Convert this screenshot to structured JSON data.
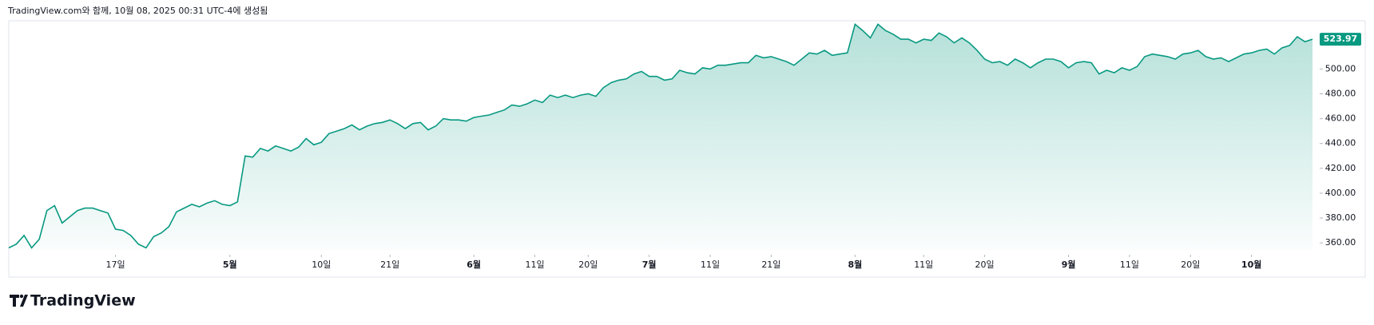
{
  "header": "TradingView.com와 함께, 10월 08, 2025 00:31 UTC-4에 생성됨",
  "brand": "TradingView",
  "chart_data": {
    "type": "area",
    "color": "#089981",
    "values": [
      356,
      359,
      366,
      356,
      363,
      386,
      390,
      376,
      381,
      386,
      388,
      388,
      386,
      384,
      371,
      370,
      366,
      359,
      356,
      365,
      368,
      373,
      385,
      388,
      391,
      389,
      392,
      394,
      391,
      390,
      393,
      430,
      429,
      436,
      434,
      438,
      436,
      434,
      437,
      444,
      439,
      441,
      448,
      450,
      452,
      455,
      451,
      454,
      456,
      457,
      459,
      456,
      452,
      456,
      457,
      451,
      454,
      460,
      459,
      459,
      458,
      461,
      462,
      463,
      465,
      467,
      471,
      470,
      472,
      475,
      473,
      479,
      477,
      479,
      477,
      479,
      480,
      478,
      485,
      489,
      491,
      492,
      496,
      498,
      494,
      494,
      491,
      492,
      499,
      497,
      496,
      501,
      500,
      503,
      503,
      504,
      505,
      505,
      511,
      509,
      510,
      508,
      506,
      503,
      508,
      513,
      512,
      515,
      511,
      512,
      513,
      536,
      531,
      525,
      536,
      531,
      528,
      524,
      524,
      521,
      524,
      523,
      529,
      526,
      521,
      525,
      521,
      515,
      508,
      505,
      506,
      503,
      508,
      505,
      501,
      505,
      508,
      508,
      506,
      501,
      505,
      506,
      505,
      496,
      499,
      497,
      501,
      499,
      502,
      510,
      512,
      511,
      510,
      508,
      512,
      513,
      515,
      510,
      508,
      509,
      506,
      509,
      512,
      513,
      515,
      516,
      512,
      517,
      519,
      526,
      522,
      523.97
    ],
    "ylim": [
      354.3,
      538.2
    ],
    "yticks": [
      {
        "value": 360,
        "label": "360.00"
      },
      {
        "value": 380,
        "label": "380.00"
      },
      {
        "value": 400,
        "label": "400.00"
      },
      {
        "value": 420,
        "label": "420.00"
      },
      {
        "value": 440,
        "label": "440.00"
      },
      {
        "value": 460,
        "label": "460.00"
      },
      {
        "value": 480,
        "label": "480.00"
      },
      {
        "value": 500,
        "label": "500.00"
      }
    ],
    "xticks": [
      {
        "value": 14,
        "label": "17일"
      },
      {
        "value": 29,
        "label": "5월",
        "bold": true
      },
      {
        "value": 41,
        "label": "10일"
      },
      {
        "value": 50,
        "label": "21일"
      },
      {
        "value": 61,
        "label": "6월",
        "bold": true
      },
      {
        "value": 69,
        "label": "11일"
      },
      {
        "value": 76,
        "label": "20일"
      },
      {
        "value": 84,
        "label": "7월",
        "bold": true
      },
      {
        "value": 92,
        "label": "11일"
      },
      {
        "value": 100,
        "label": "21일"
      },
      {
        "value": 111,
        "label": "8월",
        "bold": true
      },
      {
        "value": 120,
        "label": "11일"
      },
      {
        "value": 128,
        "label": "20일"
      },
      {
        "value": 139,
        "label": "9월",
        "bold": true
      },
      {
        "value": 147,
        "label": "11일"
      },
      {
        "value": 155,
        "label": "20일"
      },
      {
        "value": 163,
        "label": "10월",
        "bold": true
      }
    ]
  }
}
